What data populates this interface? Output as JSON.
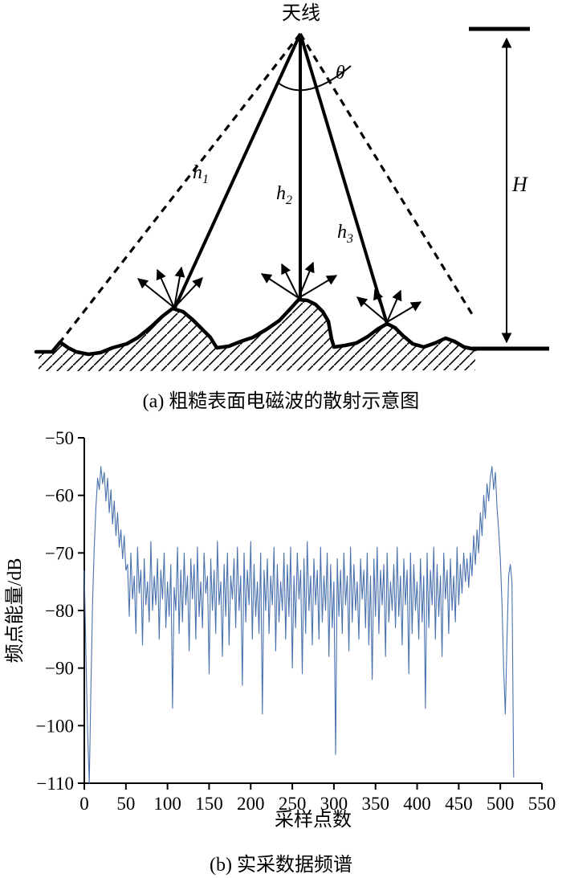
{
  "figure": {
    "panel_a": {
      "caption": "(a) 粗糙表面电磁波的散射示意图",
      "antenna_label": "天线",
      "theta_label": "θ",
      "height_label": "H",
      "beams": [
        {
          "base": "h",
          "sub": "1"
        },
        {
          "base": "h",
          "sub": "2"
        },
        {
          "base": "h",
          "sub": "3"
        }
      ]
    },
    "panel_b": {
      "caption": "(b) 实采数据频谱"
    }
  },
  "chart_data": {
    "type": "line",
    "title": "",
    "xlabel": "采样点数",
    "ylabel": "频点能量/dB",
    "xlim": [
      0,
      550
    ],
    "ylim": [
      -110,
      -50
    ],
    "x_ticks": [
      0,
      50,
      100,
      150,
      200,
      250,
      300,
      350,
      400,
      450,
      500,
      550
    ],
    "y_ticks": [
      -50,
      -60,
      -70,
      -80,
      -90,
      -100,
      -110
    ],
    "legend": [],
    "grid": false,
    "line_color": "#4a72ad",
    "x_start": 0,
    "x_step": 2,
    "values": [
      -73,
      -88,
      -101,
      -110,
      -93,
      -78,
      -69,
      -62,
      -57,
      -59,
      -55,
      -58,
      -56,
      -61,
      -57,
      -63,
      -59,
      -65,
      -61,
      -67,
      -63,
      -69,
      -66,
      -71,
      -67,
      -73,
      -72,
      -81,
      -70,
      -78,
      -74,
      -84,
      -69,
      -77,
      -73,
      -86,
      -71,
      -79,
      -75,
      -82,
      -68,
      -80,
      -74,
      -79,
      -71,
      -85,
      -73,
      -78,
      -70,
      -83,
      -75,
      -81,
      -72,
      -97,
      -76,
      -80,
      -69,
      -84,
      -73,
      -82,
      -70,
      -79,
      -74,
      -87,
      -71,
      -78,
      -72,
      -85,
      -69,
      -81,
      -75,
      -83,
      -70,
      -77,
      -74,
      -91,
      -71,
      -80,
      -73,
      -84,
      -68,
      -79,
      -75,
      -88,
      -72,
      -81,
      -70,
      -86,
      -74,
      -78,
      -71,
      -83,
      -69,
      -80,
      -74,
      -93,
      -70,
      -82,
      -73,
      -79,
      -68,
      -85,
      -72,
      -81,
      -75,
      -84,
      -70,
      -98,
      -73,
      -80,
      -71,
      -84,
      -74,
      -79,
      -69,
      -87,
      -72,
      -82,
      -75,
      -80,
      -70,
      -85,
      -72,
      -81,
      -69,
      -90,
      -74,
      -83,
      -70,
      -78,
      -73,
      -91,
      -71,
      -84,
      -68,
      -80,
      -74,
      -86,
      -71,
      -79,
      -73,
      -85,
      -69,
      -82,
      -74,
      -80,
      -70,
      -88,
      -72,
      -83,
      -75,
      -105,
      -71,
      -81,
      -73,
      -84,
      -70,
      -79,
      -74,
      -87,
      -69,
      -82,
      -72,
      -80,
      -75,
      -85,
      -71,
      -78,
      -73,
      -83,
      -70,
      -86,
      -74,
      -92,
      -71,
      -81,
      -69,
      -84,
      -73,
      -79,
      -72,
      -88,
      -70,
      -82,
      -75,
      -80,
      -72,
      -83,
      -69,
      -81,
      -74,
      -86,
      -71,
      -79,
      -73,
      -91,
      -70,
      -84,
      -72,
      -80,
      -75,
      -85,
      -71,
      -82,
      -74,
      -97,
      -70,
      -83,
      -73,
      -79,
      -69,
      -85,
      -72,
      -81,
      -74,
      -88,
      -70,
      -78,
      -73,
      -84,
      -71,
      -80,
      -74,
      -82,
      -69,
      -79,
      -72,
      -77,
      -70,
      -75,
      -71,
      -76,
      -70,
      -74,
      -67,
      -72,
      -66,
      -70,
      -63,
      -67,
      -60,
      -64,
      -58,
      -61,
      -57,
      -55,
      -59,
      -56,
      -62,
      -66,
      -71,
      -79,
      -90,
      -98,
      -85,
      -74,
      -72,
      -75,
      -109
    ]
  }
}
